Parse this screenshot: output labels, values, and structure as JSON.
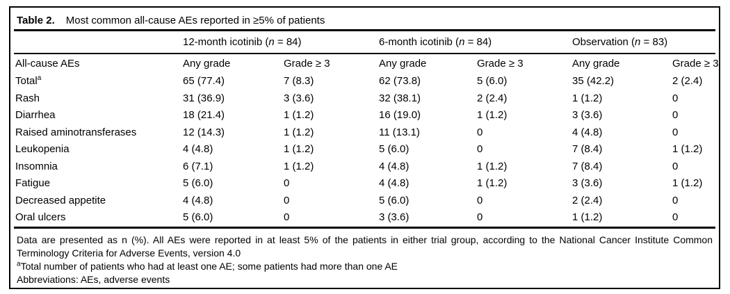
{
  "colors": {
    "text": "#000000",
    "border": "#000000",
    "background": "#ffffff"
  },
  "title": {
    "label": "Table 2.",
    "text": "Most common all-cause AEs reported in ≥5% of patients"
  },
  "table": {
    "groups": [
      {
        "pre": "12-month icotinib (",
        "n": "n",
        "post": " = 84)"
      },
      {
        "pre": "6-month icotinib (",
        "n": "n",
        "post": " = 84)"
      },
      {
        "pre": "Observation (",
        "n": "n",
        "post": " = 83)"
      }
    ],
    "header_label": "All-cause AEs",
    "sub_headers": [
      "Any grade",
      "Grade ≥ 3",
      "Any grade",
      "Grade ≥ 3",
      "Any grade",
      "Grade ≥ 3"
    ],
    "rows": [
      {
        "label": "Total",
        "sup": "a",
        "values": [
          "65 (77.4)",
          "7 (8.3)",
          "62 (73.8)",
          "5 (6.0)",
          "35 (42.2)",
          "2 (2.4)"
        ]
      },
      {
        "label": "Rash",
        "values": [
          "31 (36.9)",
          "3 (3.6)",
          "32 (38.1)",
          "2 (2.4)",
          "1 (1.2)",
          "0"
        ]
      },
      {
        "label": "Diarrhea",
        "values": [
          "18 (21.4)",
          "1 (1.2)",
          "16 (19.0)",
          "1 (1.2)",
          "3 (3.6)",
          "0"
        ]
      },
      {
        "label": "Raised aminotransferases",
        "values": [
          "12 (14.3)",
          "1 (1.2)",
          "11 (13.1)",
          "0",
          "4 (4.8)",
          "0"
        ]
      },
      {
        "label": "Leukopenia",
        "values": [
          "4 (4.8)",
          "1 (1.2)",
          "5 (6.0)",
          "0",
          "7 (8.4)",
          "1 (1.2)"
        ]
      },
      {
        "label": "Insomnia",
        "values": [
          "6 (7.1)",
          "1 (1.2)",
          "4 (4.8)",
          "1 (1.2)",
          "7 (8.4)",
          "0"
        ]
      },
      {
        "label": "Fatigue",
        "values": [
          "5 (6.0)",
          "0",
          "4 (4.8)",
          "1 (1.2)",
          "3 (3.6)",
          "1 (1.2)"
        ]
      },
      {
        "label": "Decreased appetite",
        "values": [
          "4 (4.8)",
          "0",
          "5 (6.0)",
          "0",
          "2 (2.4)",
          "0"
        ]
      },
      {
        "label": "Oral ulcers",
        "values": [
          "5 (6.0)",
          "0",
          "3 (3.6)",
          "0",
          "1 (1.2)",
          "0"
        ]
      }
    ]
  },
  "footer": {
    "note": "Data are presented as n (%). All AEs were reported in at least 5% of the patients in either trial group, according to the National Cancer Institute Common Terminology Criteria for Adverse Events, version 4.0",
    "footnote_sup": "a",
    "footnote_text": "Total number of patients who had at least one AE; some patients had more than one AE",
    "abbreviations": "Abbreviations: AEs, adverse events"
  }
}
